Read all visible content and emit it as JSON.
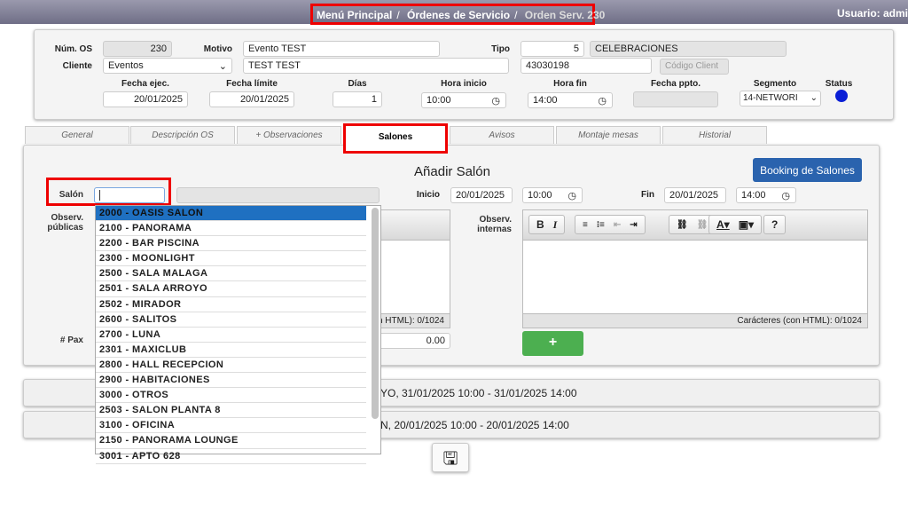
{
  "breadcrumb": {
    "home": "Menú Principal",
    "orders": "Órdenes de Servicio",
    "current": "Orden Serv. 230"
  },
  "user": "Usuario: admi",
  "header": {
    "num_os_label": "Núm. OS",
    "num_os": "230",
    "motivo_label": "Motivo",
    "motivo": "Evento TEST",
    "tipo_label": "Tipo",
    "tipo_code": "5",
    "tipo_name": "CELEBRACIONES",
    "cliente_label": "Cliente",
    "cliente": "Eventos",
    "cliente_name": "TEST TEST",
    "cliente_phone": "43030198",
    "codigo_cliente_btn": "Código Client",
    "fecha_ejec_label": "Fecha ejec.",
    "fecha_ejec": "20/01/2025",
    "fecha_limite_label": "Fecha límite",
    "fecha_limite": "20/01/2025",
    "dias_label": "Días",
    "dias": "1",
    "hora_inicio_label": "Hora inicio",
    "hora_inicio": "10:00",
    "hora_fin_label": "Hora fin",
    "hora_fin": "14:00",
    "fecha_ppto_label": "Fecha ppto.",
    "fecha_ppto": "",
    "segmento_label": "Segmento",
    "segmento": "14-NETWORI",
    "status_label": "Status",
    "status_color": "#0a1fd6"
  },
  "tabs": [
    "General",
    "Descripción OS",
    "+ Observaciones",
    "Salones",
    "Avisos",
    "Montaje mesas",
    "Historial"
  ],
  "salon_form": {
    "title": "Añadir Salón",
    "booking_btn": "Booking de Salones",
    "salon_label": "Salón",
    "salon_value": "",
    "inicio_label": "Inicio",
    "inicio_date": "20/01/2025",
    "inicio_time": "10:00",
    "fin_label": "Fin",
    "fin_date": "20/01/2025",
    "fin_time": "14:00",
    "obs_publicas_label": "Observ. públicas",
    "obs_internas_label": "Observ. internas",
    "char_count_public": "n HTML): 0/1024",
    "char_count_internal": "Carácteres (con HTML): 0/1024",
    "pax_label": "# Pax",
    "pax_value": "0.00",
    "add_btn": "+"
  },
  "dropdown": [
    "2000 - OASIS SALON",
    "2100 - PANORAMA",
    "2200 - BAR PISCINA",
    "2300 - MOONLIGHT",
    "2500 - SALA MALAGA",
    "2501 - SALA ARROYO",
    "2502 - MIRADOR",
    "2600 - SALITOS",
    "2700 - LUNA",
    "2301 - MAXICLUB",
    "2800 - HALL RECEPCION",
    "2900 - HABITACIONES",
    "3000 - OTROS",
    "2503 - SALON PLANTA 8",
    "3100 - OFICINA",
    "2150 - PANORAMA LOUNGE",
    "3001 - APTO 628"
  ],
  "bookings": [
    "YO, 31/01/2025 10:00 - 31/01/2025 14:00",
    "N, 20/01/2025 10:00 - 20/01/2025 14:00"
  ]
}
